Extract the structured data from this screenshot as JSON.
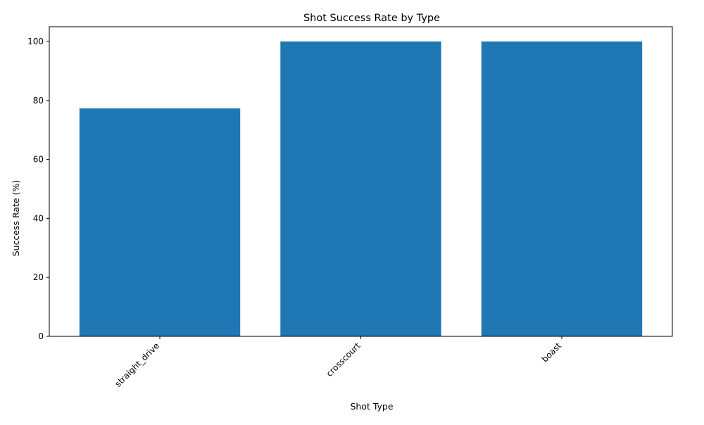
{
  "chart_data": {
    "type": "bar",
    "title": "Shot Success Rate by Type",
    "xlabel": "Shot Type",
    "ylabel": "Success Rate (%)",
    "categories": [
      "straight_drive",
      "crosscourt",
      "boast"
    ],
    "values": [
      77.3,
      100,
      100
    ],
    "ylim": [
      0,
      105
    ],
    "yticks": [
      0,
      20,
      40,
      60,
      80,
      100
    ],
    "bar_color": "#1f77b4",
    "grid": false,
    "x_tick_rotation": "45 degrees",
    "legend": "none"
  }
}
